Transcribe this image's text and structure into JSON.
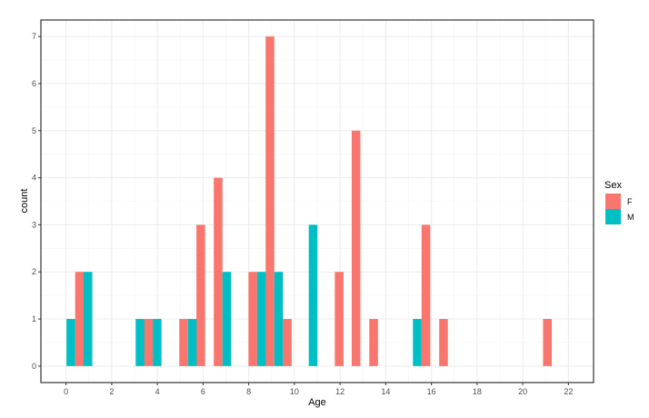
{
  "chart_data": {
    "type": "bar",
    "title": "",
    "xlabel": "Age",
    "ylabel": "count",
    "xlim": [
      -1.1,
      23.1
    ],
    "ylim": [
      -0.35,
      7.35
    ],
    "x_ticks": [
      0,
      2,
      4,
      6,
      8,
      10,
      12,
      14,
      16,
      18,
      20,
      22
    ],
    "y_ticks": [
      0,
      1,
      2,
      3,
      4,
      5,
      6,
      7
    ],
    "grid": true,
    "bar_width": 0.38,
    "legend": {
      "title": "Sex",
      "position": "right",
      "entries": [
        {
          "label": "F",
          "color": "#F8766D"
        },
        {
          "label": "M",
          "color": "#00BFC4"
        }
      ]
    },
    "series": [
      {
        "name": "F",
        "color": "#F8766D",
        "points": [
          {
            "x": 0.59,
            "y": 2
          },
          {
            "x": 3.61,
            "y": 1
          },
          {
            "x": 5.15,
            "y": 1
          },
          {
            "x": 5.9,
            "y": 3
          },
          {
            "x": 6.66,
            "y": 4
          },
          {
            "x": 8.18,
            "y": 2
          },
          {
            "x": 8.93,
            "y": 7
          },
          {
            "x": 9.69,
            "y": 1
          },
          {
            "x": 11.96,
            "y": 2
          },
          {
            "x": 12.7,
            "y": 5
          },
          {
            "x": 13.47,
            "y": 1
          },
          {
            "x": 15.76,
            "y": 3
          },
          {
            "x": 16.53,
            "y": 1
          },
          {
            "x": 21.08,
            "y": 1
          }
        ]
      },
      {
        "name": "M",
        "color": "#00BFC4",
        "points": [
          {
            "x": 0.21,
            "y": 1
          },
          {
            "x": 0.96,
            "y": 2
          },
          {
            "x": 3.24,
            "y": 1
          },
          {
            "x": 3.99,
            "y": 1
          },
          {
            "x": 5.53,
            "y": 1
          },
          {
            "x": 7.04,
            "y": 2
          },
          {
            "x": 8.56,
            "y": 2
          },
          {
            "x": 9.31,
            "y": 2
          },
          {
            "x": 10.82,
            "y": 3
          },
          {
            "x": 15.38,
            "y": 1
          }
        ]
      }
    ]
  },
  "layout_colors": {
    "panel_border": "#333333",
    "grid_major": "#ebebeb",
    "grid_minor": "#f4f4f4",
    "background": "#ffffff"
  }
}
